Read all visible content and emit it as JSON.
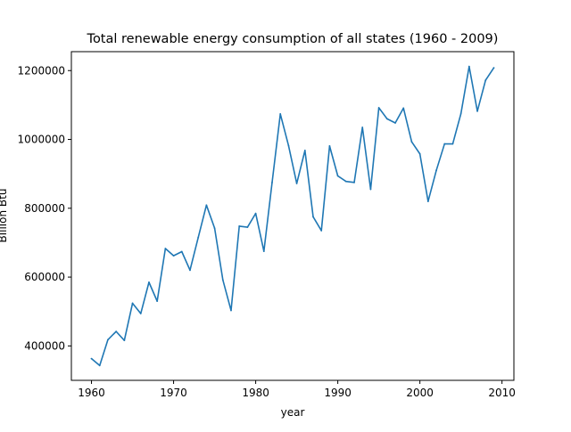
{
  "chart_data": {
    "type": "line",
    "title": "Total renewable energy consumption of all states (1960 - 2009)",
    "xlabel": "year",
    "ylabel": "Billion Btu",
    "xlim": [
      1957.55,
      2011.45
    ],
    "ylim": [
      300000,
      1255000
    ],
    "xticks": [
      1960,
      1970,
      1980,
      1990,
      2000,
      2010
    ],
    "yticks": [
      400000,
      600000,
      800000,
      1000000,
      1200000
    ],
    "xtick_labels": [
      "1960",
      "1970",
      "1980",
      "1990",
      "2000",
      "2010"
    ],
    "ytick_labels": [
      "400000",
      "600000",
      "800000",
      "1000000",
      "1200000"
    ],
    "grid": false,
    "legend": "none",
    "line_color": "#1f77b4",
    "series": [
      {
        "x": [
          1960,
          1961,
          1962,
          1963,
          1964,
          1965,
          1966,
          1967,
          1968,
          1969,
          1970,
          1971,
          1972,
          1973,
          1974,
          1975,
          1976,
          1977,
          1978,
          1979,
          1980,
          1981,
          1982,
          1983,
          1984,
          1985,
          1986,
          1987,
          1988,
          1989,
          1990,
          1991,
          1992,
          1993,
          1994,
          1995,
          1996,
          1997,
          1998,
          1999,
          2000,
          2001,
          2002,
          2003,
          2004,
          2005,
          2006,
          2007,
          2008,
          2009
        ],
        "values": [
          363000,
          343000,
          418000,
          442000,
          416000,
          524000,
          494000,
          585000,
          530000,
          683000,
          662000,
          674000,
          620000,
          715000,
          809000,
          742000,
          592000,
          503000,
          748000,
          745000,
          785000,
          675000,
          875000,
          1074000,
          982000,
          872000,
          968000,
          775000,
          735000,
          981000,
          894000,
          878000,
          875000,
          1035000,
          855000,
          1092000,
          1060000,
          1048000,
          1091000,
          993000,
          958000,
          820000,
          910000,
          987000,
          987000,
          1075000,
          1212000,
          1082000,
          1172000,
          1208000
        ]
      }
    ]
  }
}
